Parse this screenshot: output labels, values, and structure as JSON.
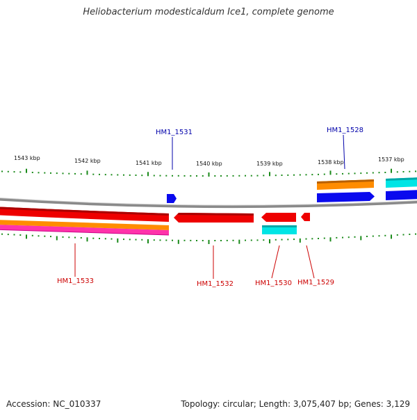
{
  "title": "Heliobacterium modesticaldum Ice1, complete genome",
  "footer": {
    "accession": "Accession: NC_010337",
    "summary": "Topology: circular; Length: 3,075,407 bp; Genes: 3,129"
  },
  "ruler": {
    "labels": [
      "1543 kbp",
      "1542 kbp",
      "1541 kbp",
      "1540 kbp",
      "1539 kbp",
      "1538 kbp",
      "1537 kbp"
    ],
    "tick_color": "#1a8a1a"
  },
  "gene_labels": [
    {
      "id": "HM1_1531",
      "text": "HM1_1531",
      "strand": "forward",
      "color": "#0000aa"
    },
    {
      "id": "HM1_1528",
      "text": "HM1_1528",
      "strand": "forward",
      "color": "#0000aa"
    },
    {
      "id": "HM1_1533",
      "text": "HM1_1533",
      "strand": "reverse",
      "color": "#cc0000"
    },
    {
      "id": "HM1_1532",
      "text": "HM1_1532",
      "strand": "reverse",
      "color": "#cc0000"
    },
    {
      "id": "HM1_1530",
      "text": "HM1_1530",
      "strand": "reverse",
      "color": "#cc0000"
    },
    {
      "id": "HM1_1529",
      "text": "HM1_1529",
      "strand": "reverse",
      "color": "#cc0000"
    }
  ],
  "colors": {
    "backbone": "#8a8a8a",
    "cds_red": "#ee0000",
    "cds_blue": "#0a0aee",
    "cds_orange": "#ff8c00",
    "cds_cyan": "#00e5e5",
    "cds_magenta": "#ff33aa"
  }
}
